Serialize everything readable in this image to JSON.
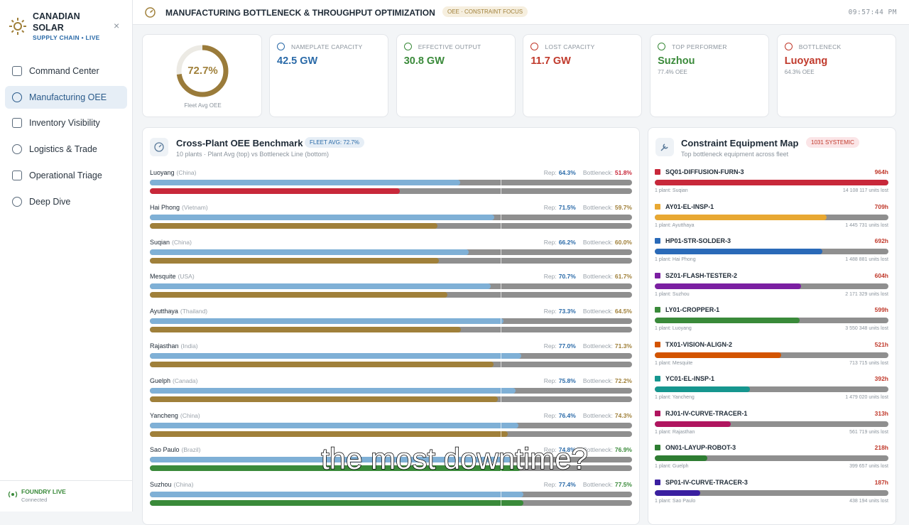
{
  "sidebar": {
    "brand": "CANADIAN SOLAR",
    "tagline": "SUPPLY CHAIN • LIVE",
    "nav": [
      "Command Center",
      "Manufacturing OEE",
      "Inventory Visibility",
      "Logistics & Trade",
      "Operational Triage",
      "Deep Dive"
    ],
    "active": 1,
    "status": "FOUNDRY LIVE",
    "status_detail": "Connected"
  },
  "header": {
    "title": "MANUFACTURING BOTTLENECK & THROUGHPUT OPTIMIZATION",
    "badge": "OEE · CONSTRAINT FOCUS",
    "time": "09:57:44 PM"
  },
  "kpis": {
    "fleet_oee": {
      "value": 72.7,
      "label": "72.7%",
      "caption": "Fleet Avg OEE"
    },
    "cards": [
      {
        "label": "NAMEPLATE CAPACITY",
        "value": "42.5 GW",
        "color": "#2a6aa8"
      },
      {
        "label": "EFFECTIVE OUTPUT",
        "value": "30.8 GW",
        "color": "#3a8a3a"
      },
      {
        "label": "LOST CAPACITY",
        "value": "11.7 GW",
        "color": "#c0392b"
      },
      {
        "label": "TOP PERFORMER",
        "value": "Suzhou",
        "detail": "77.4% OEE",
        "color": "#3a8a3a"
      },
      {
        "label": "BOTTLENECK",
        "value": "Luoyang",
        "detail": "64.3% OEE",
        "color": "#c0392b"
      }
    ]
  },
  "benchmark": {
    "title": "Cross-Plant OEE Benchmark",
    "badge": "FLEET AVG: 72.7%",
    "subtitle": "10 plants · Plant Avg (top) vs Bottleneck Line (bottom)",
    "rep_label": "Rep:",
    "bottleneck_label": "Bottleneck:",
    "rep_color": "#7fb0d6",
    "rows": [
      {
        "plant": "Luoyang",
        "country": "(China)",
        "rep": {
          "value": 64.3,
          "label": "64.3%"
        },
        "bottleneck": {
          "value": 51.8,
          "label": "51.8%"
        },
        "color": "#c8283a"
      },
      {
        "plant": "Hai Phong",
        "country": "(Vietnam)",
        "rep": {
          "value": 71.5,
          "label": "71.5%"
        },
        "bottleneck": {
          "value": 59.7,
          "label": "59.7%"
        },
        "color": "#a0803a"
      },
      {
        "plant": "Suqian",
        "country": "(China)",
        "rep": {
          "value": 66.2,
          "label": "66.2%"
        },
        "bottleneck": {
          "value": 60.0,
          "label": "60.0%"
        },
        "color": "#a0803a"
      },
      {
        "plant": "Mesquite",
        "country": "(USA)",
        "rep": {
          "value": 70.7,
          "label": "70.7%"
        },
        "bottleneck": {
          "value": 61.7,
          "label": "61.7%"
        },
        "color": "#a0803a"
      },
      {
        "plant": "Ayutthaya",
        "country": "(Thailand)",
        "rep": {
          "value": 73.3,
          "label": "73.3%"
        },
        "bottleneck": {
          "value": 64.5,
          "label": "64.5%"
        },
        "color": "#a0803a"
      },
      {
        "plant": "Rajasthan",
        "country": "(India)",
        "rep": {
          "value": 77.0,
          "label": "77.0%"
        },
        "bottleneck": {
          "value": 71.3,
          "label": "71.3%"
        },
        "color": "#a0803a"
      },
      {
        "plant": "Guelph",
        "country": "(Canada)",
        "rep": {
          "value": 75.8,
          "label": "75.8%"
        },
        "bottleneck": {
          "value": 72.2,
          "label": "72.2%"
        },
        "color": "#a0803a"
      },
      {
        "plant": "Yancheng",
        "country": "(China)",
        "rep": {
          "value": 76.4,
          "label": "76.4%"
        },
        "bottleneck": {
          "value": 74.3,
          "label": "74.3%"
        },
        "color": "#a0803a"
      },
      {
        "plant": "Sao Paulo",
        "country": "(Brazil)",
        "rep": {
          "value": 74.8,
          "label": "74.8%"
        },
        "bottleneck": {
          "value": 76.9,
          "label": "76.9%"
        },
        "color": "#3a8a3a"
      },
      {
        "plant": "Suzhou",
        "country": "(China)",
        "rep": {
          "value": 77.4,
          "label": "77.4%"
        },
        "bottleneck": {
          "value": 77.5,
          "label": "77.5%"
        },
        "color": "#3a8a3a"
      }
    ]
  },
  "constraints": {
    "title": "Constraint Equipment Map",
    "badge": "1031 SYSTEMIC",
    "subtitle": "Top bottleneck equipment across fleet",
    "items": [
      {
        "name": "SQ01-DIFFUSION-FURN-3",
        "hours": {
          "value": 964,
          "label": "964h"
        },
        "plants": "1 plant: Suqian",
        "units": "14 108 117 units lost",
        "color": "#c8283a"
      },
      {
        "name": "AY01-EL-INSP-1",
        "hours": {
          "value": 709,
          "label": "709h"
        },
        "plants": "1 plant: Ayutthaya",
        "units": "1 445 731 units lost",
        "color": "#e8a832"
      },
      {
        "name": "HP01-STR-SOLDER-3",
        "hours": {
          "value": 692,
          "label": "692h"
        },
        "plants": "1 plant: Hai Phong",
        "units": "1 488 881 units lost",
        "color": "#2a6ab8"
      },
      {
        "name": "SZ01-FLASH-TESTER-2",
        "hours": {
          "value": 604,
          "label": "604h"
        },
        "plants": "1 plant: Suzhou",
        "units": "2 171 329 units lost",
        "color": "#7b1fa2"
      },
      {
        "name": "LY01-CROPPER-1",
        "hours": {
          "value": 599,
          "label": "599h"
        },
        "plants": "1 plant: Luoyang",
        "units": "3 550 348 units lost",
        "color": "#3a8a3a"
      },
      {
        "name": "TX01-VISION-ALIGN-2",
        "hours": {
          "value": 521,
          "label": "521h"
        },
        "plants": "1 plant: Mesquite",
        "units": "713 715 units lost",
        "color": "#d35400"
      },
      {
        "name": "YC01-EL-INSP-1",
        "hours": {
          "value": 392,
          "label": "392h"
        },
        "plants": "1 plant: Yancheng",
        "units": "1 479 020 units lost",
        "color": "#16968f"
      },
      {
        "name": "RJ01-IV-CURVE-TRACER-1",
        "hours": {
          "value": 313,
          "label": "313h"
        },
        "plants": "1 plant: Rajasthan",
        "units": "561 719 units lost",
        "color": "#b0155f"
      },
      {
        "name": "ON01-LAYUP-ROBOT-3",
        "hours": {
          "value": 218,
          "label": "218h"
        },
        "plants": "1 plant: Guelph",
        "units": "399 657 units lost",
        "color": "#2e7d32"
      },
      {
        "name": "SP01-IV-CURVE-TRACER-3",
        "hours": {
          "value": 187,
          "label": "187h"
        },
        "plants": "1 plant: Sao Paulo",
        "units": "438 194 units lost",
        "color": "#3a1fa0"
      }
    ]
  },
  "caption": "the most downtime?"
}
